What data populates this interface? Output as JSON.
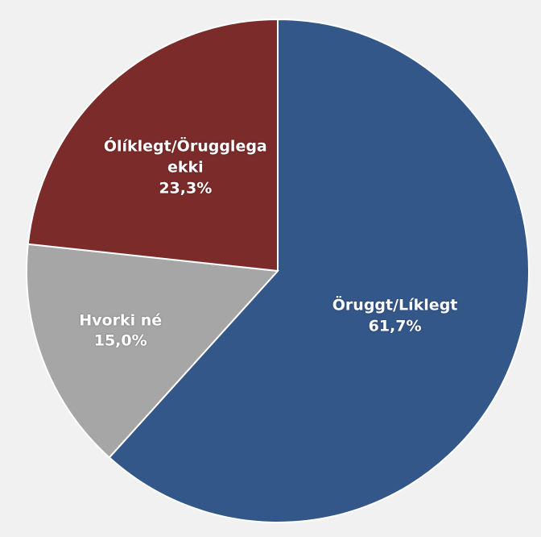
{
  "chart_data": {
    "type": "pie",
    "categories": [
      "Öruggt/Líklegt",
      "Hvorki né",
      "Ólíklegt/Örugglega ekki"
    ],
    "values": [
      61.7,
      15.0,
      23.3
    ],
    "value_labels": [
      "61,7%",
      "15,0%",
      "23,3%"
    ],
    "colors": [
      "#34578a",
      "#a6a6a6",
      "#7b2b2a"
    ]
  }
}
